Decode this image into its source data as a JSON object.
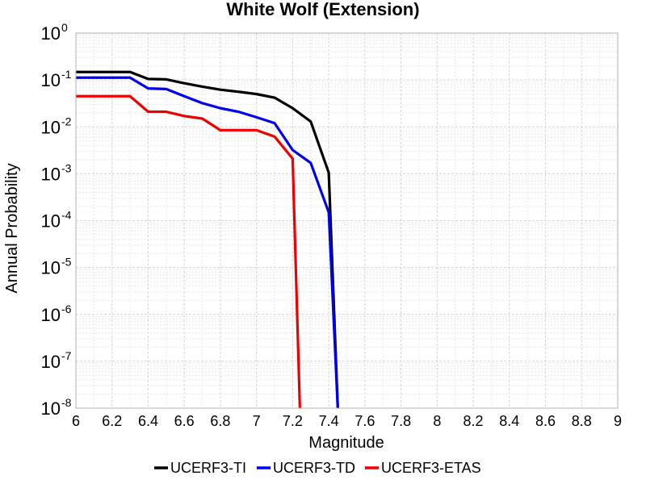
{
  "chart_data": {
    "type": "line",
    "title": "White Wolf (Extension)",
    "xlabel": "Magnitude",
    "ylabel": "Annual Probability",
    "xlim": [
      6,
      9
    ],
    "ylim": [
      1e-08,
      1
    ],
    "yscale": "log",
    "grid": true,
    "legend_position": "bottom",
    "x_ticks": [
      "6",
      "6.2",
      "6.4",
      "6.6",
      "6.8",
      "7",
      "7.2",
      "7.4",
      "7.6",
      "7.8",
      "8",
      "8.2",
      "8.4",
      "8.6",
      "8.8",
      "9"
    ],
    "y_ticks": [
      {
        "base": "10",
        "exp": "0"
      },
      {
        "base": "10",
        "exp": "-1"
      },
      {
        "base": "10",
        "exp": "-2"
      },
      {
        "base": "10",
        "exp": "-3"
      },
      {
        "base": "10",
        "exp": "-4"
      },
      {
        "base": "10",
        "exp": "-5"
      },
      {
        "base": "10",
        "exp": "-6"
      },
      {
        "base": "10",
        "exp": "-7"
      },
      {
        "base": "10",
        "exp": "-8"
      }
    ],
    "series": [
      {
        "name": "UCERF3-TI",
        "color": "#000000",
        "x": [
          6.0,
          6.3,
          6.4,
          6.5,
          6.6,
          6.7,
          6.8,
          6.9,
          7.0,
          7.1,
          7.2,
          7.3,
          7.4,
          7.45
        ],
        "y": [
          0.148,
          0.148,
          0.105,
          0.103,
          0.085,
          0.072,
          0.062,
          0.056,
          0.05,
          0.042,
          0.025,
          0.013,
          0.00105,
          1e-08
        ]
      },
      {
        "name": "UCERF3-TD",
        "color": "#0000ee",
        "x": [
          6.0,
          6.3,
          6.4,
          6.5,
          6.6,
          6.7,
          6.8,
          6.9,
          7.0,
          7.1,
          7.2,
          7.3,
          7.4,
          7.45
        ],
        "y": [
          0.112,
          0.112,
          0.066,
          0.064,
          0.045,
          0.032,
          0.025,
          0.021,
          0.016,
          0.012,
          0.0032,
          0.0017,
          0.00015,
          1e-08
        ]
      },
      {
        "name": "UCERF3-ETAS",
        "color": "#ee0000",
        "x": [
          6.0,
          6.3,
          6.4,
          6.5,
          6.6,
          6.7,
          6.8,
          6.9,
          7.0,
          7.1,
          7.2,
          7.24
        ],
        "y": [
          0.045,
          0.045,
          0.021,
          0.021,
          0.017,
          0.015,
          0.0085,
          0.0085,
          0.0085,
          0.0062,
          0.0021,
          1e-08
        ]
      }
    ]
  }
}
